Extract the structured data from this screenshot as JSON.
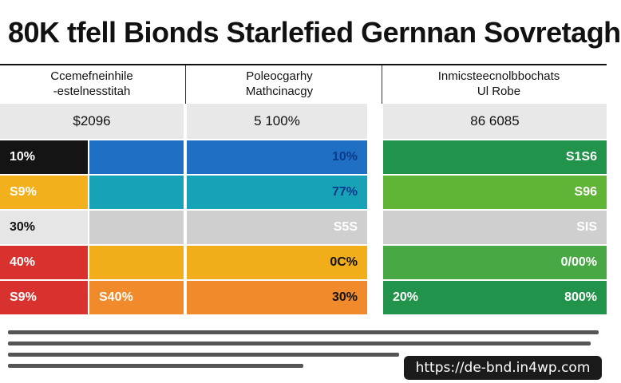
{
  "title": "80K tfell Bionds Starlefied Gernnan Sovretagh",
  "columns": [
    {
      "header_line1": "Ccemefneinhile",
      "header_line2": "-estelnesstitah",
      "value": "$2096"
    },
    {
      "header_line1": "Poleocgarhy",
      "header_line2": "Mathcinacgy",
      "value": "5 100%"
    },
    {
      "header_line1": "Inmicsteecnolbbochats",
      "header_line2": "Ul Robe",
      "value": "86 6085"
    }
  ],
  "footer_url": "https://de-bnd.in4wp.com",
  "chart_data": {
    "type": "table",
    "title": "80K tfell Bionds Starlefied Gernnan Sovretagh",
    "rows": [
      {
        "color_left": "#141414",
        "color_mid": "#1f6fc5",
        "color_right": "#22934a",
        "left_label": "10%",
        "mid_label": "",
        "mid2_label": "10%",
        "right_label": "",
        "right2_label": "S1S6",
        "mid_text_color": "#0b3a8a",
        "right_text_color": "#ffffff",
        "left_text_color": "#ffffff"
      },
      {
        "color_left": "#f2b11c",
        "color_mid": "#18a2b8",
        "color_right": "#61b536",
        "left_label": "S9%",
        "mid_label": "",
        "mid2_label": "77%",
        "right_label": "",
        "right2_label": "S96",
        "mid_text_color": "#0b3a8a",
        "right_text_color": "#ffffff",
        "left_text_color": "#ffffff"
      },
      {
        "color_left": "#e6e6e6",
        "color_mid": "#cfcfcf",
        "color_right": "#cfcfcf",
        "left_label": "30%",
        "mid_label": "",
        "mid2_label": "S5S",
        "right_label": "",
        "right2_label": "SIS",
        "mid_text_color": "#ffffff",
        "right_text_color": "#ffffff",
        "left_text_color": "#111111"
      },
      {
        "color_left": "#d9312d",
        "color_mid": "#f2ae1a",
        "color_right": "#47a844",
        "left_label": "40%",
        "mid_label": "",
        "mid2_label": "0C%",
        "right_label": "",
        "right2_label": "0/00%",
        "mid_text_color": "#111111",
        "right_text_color": "#ffffff",
        "left_text_color": "#ffffff"
      },
      {
        "color_left": "#d9312d",
        "color_mid": "#f08a2a",
        "color_right": "#22934a",
        "left_label": "S9%",
        "mid_label": "S40%",
        "mid2_label": "30%",
        "right_label": "20%",
        "right2_label": "800%",
        "mid_text_color": "#111111",
        "right_text_color": "#ffffff",
        "left_text_color": "#ffffff"
      }
    ]
  }
}
